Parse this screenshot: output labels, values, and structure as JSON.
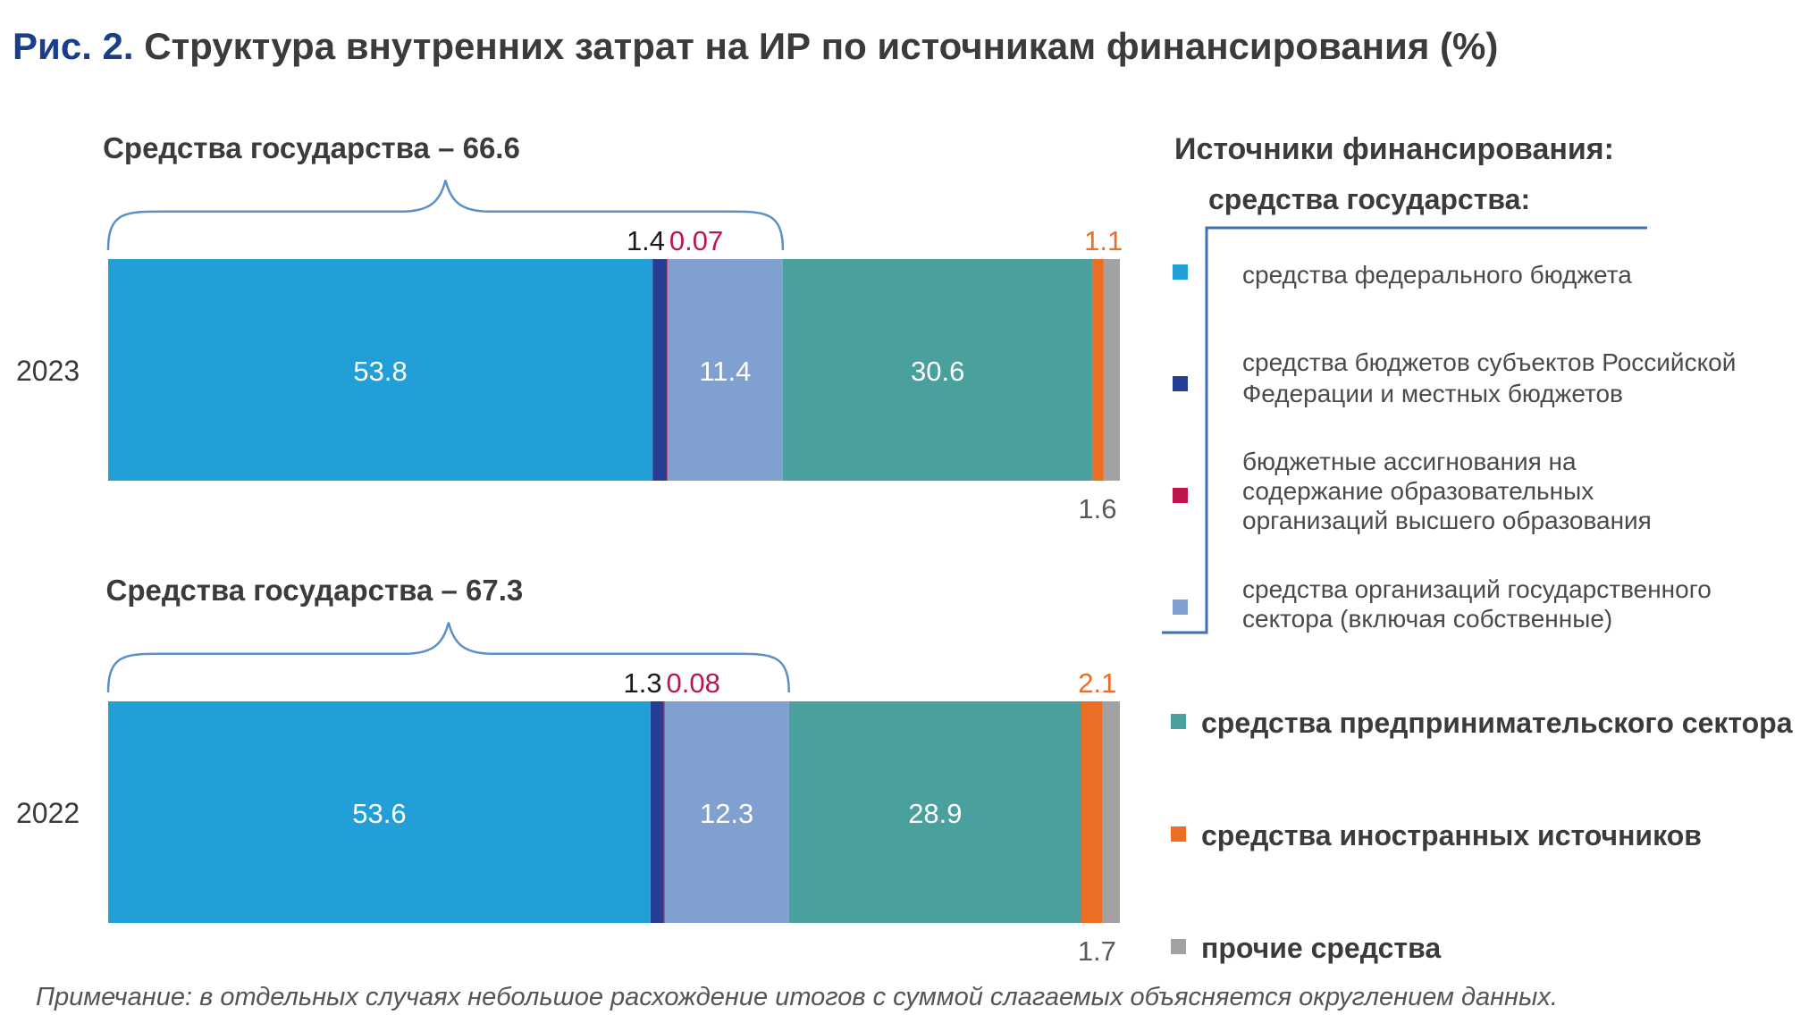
{
  "figure": {
    "prefix": "Рис. 2.",
    "title": "Структура внутренних затрат на ИР по источникам финансирования (%)"
  },
  "legend": {
    "title": "Источники финансирования:",
    "group_title": "средства государства:",
    "items": [
      {
        "label": "средства федерального бюджета",
        "color": "#239fd8",
        "bold": false
      },
      {
        "label": "средства бюджетов субъектов Российской Федерации и местных бюджетов",
        "color": "#263e93",
        "bold": false
      },
      {
        "label": "бюджетные ассигнования на содержание образовательных организаций высшего образования",
        "color": "#c0154a",
        "bold": false
      },
      {
        "label": "средства организаций государственного сектора (включая собственные)",
        "color": "#80a1d0",
        "bold": false
      },
      {
        "label": "средства предпринимательского сектора",
        "color": "#4aa09d",
        "bold": true
      },
      {
        "label": "средства иностранных источников",
        "color": "#ec6d24",
        "bold": true
      },
      {
        "label": "прочие средства",
        "color": "#a2a2a2",
        "bold": true
      }
    ]
  },
  "chart_data": {
    "type": "bar",
    "orientation": "horizontal",
    "stacked": true,
    "categories": [
      "2023",
      "2022"
    ],
    "series": [
      {
        "name": "средства федерального бюджета",
        "values": [
          53.8,
          53.6
        ]
      },
      {
        "name": "средства бюджетов субъектов Российской Федерации и местных бюджетов",
        "values": [
          1.4,
          1.3
        ]
      },
      {
        "name": "бюджетные ассигнования на содержание образовательных организаций высшего образования",
        "values": [
          0.07,
          0.08
        ]
      },
      {
        "name": "средства организаций государственного сектора (включая собственные)",
        "values": [
          11.4,
          12.3
        ]
      },
      {
        "name": "средства предпринимательского сектора",
        "values": [
          30.6,
          28.9
        ]
      },
      {
        "name": "средства иностранных источников",
        "values": [
          1.1,
          2.1
        ]
      },
      {
        "name": "прочие средства",
        "values": [
          1.6,
          1.7
        ]
      }
    ],
    "label_colors": [
      "#ffffff",
      "#1a1a1a",
      "#c0154a",
      "#ffffff",
      "#ffffff",
      "#ec6d24",
      "#595959"
    ],
    "government_totals": [
      "Средства государства – 66.6",
      "Средства государства – 67.3"
    ],
    "xlim": [
      0,
      100
    ],
    "grid": false,
    "legend_position": "right"
  },
  "note": "Примечание: в отдельных случаях небольшое расхождение итогов с суммой слагаемых объясняется округлением данных."
}
